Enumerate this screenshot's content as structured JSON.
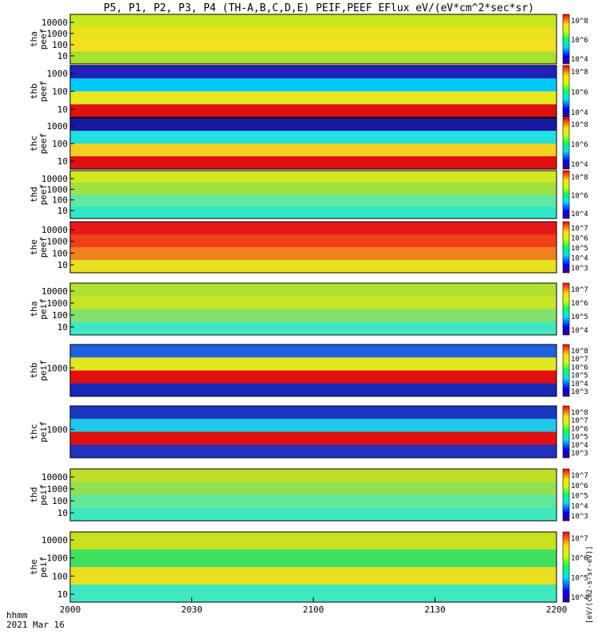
{
  "title": "P5, P1, P2, P3, P4 (TH-A,B,C,D,E) PEIF,PEEF EFlux eV/(eV*cm^2*sec*sr)",
  "x_axis": {
    "ticks": [
      "2000",
      "2030",
      "2100",
      "2130",
      "2200"
    ],
    "unit_label": "hhmm",
    "date_label": "2021 Mar 16"
  },
  "colorbar_label": "[eV/(cm2-s-sr-eV)]",
  "chart_data": {
    "type": "heatmap",
    "panels": [
      {
        "id": "tha-peef",
        "label_top": "tha",
        "label_bottom": "peef",
        "y_ticks": [
          "10000",
          "1000",
          "100",
          "10"
        ],
        "cbar_ticks": [
          "10^8",
          "10^6",
          "10^4"
        ],
        "colors": [
          "#c8e81e",
          "#e8e41c",
          "#f4e020",
          "#a8e02c"
        ]
      },
      {
        "id": "thb-peef",
        "label_top": "thb",
        "label_bottom": "peef",
        "y_ticks": [
          "1000",
          "100",
          "10"
        ],
        "cbar_ticks": [
          "10^8",
          "10^6",
          "10^4"
        ],
        "colors": [
          "#2020b8",
          "#00c8ff",
          "#e8e820",
          "#e01010"
        ]
      },
      {
        "id": "thc-peef",
        "label_top": "thc",
        "label_bottom": "peef",
        "y_ticks": [
          "1000",
          "100",
          "10"
        ],
        "cbar_ticks": [
          "10^8",
          "10^6",
          "10^4"
        ],
        "colors": [
          "#1818a0",
          "#20e0e0",
          "#f0d020",
          "#e01010"
        ]
      },
      {
        "id": "thd-peef",
        "label_top": "thd",
        "label_bottom": "peef",
        "y_ticks": [
          "10000",
          "1000",
          "100",
          "10"
        ],
        "cbar_ticks": [
          "10^8",
          "10^6",
          "10^4"
        ],
        "colors": [
          "#d0e820",
          "#a0e040",
          "#60e8a0",
          "#30e8c8"
        ]
      },
      {
        "id": "the-peef",
        "label_top": "the",
        "label_bottom": "peef",
        "y_ticks": [
          "10000",
          "1000",
          "100",
          "10"
        ],
        "cbar_ticks": [
          "10^7",
          "10^6",
          "10^5",
          "10^4",
          "10^3"
        ],
        "colors": [
          "#e81818",
          "#f04018",
          "#f08020",
          "#e8e020"
        ]
      },
      {
        "id": "tha-peif",
        "label_top": "tha",
        "label_bottom": "peif",
        "y_ticks": [
          "10000",
          "1000",
          "100",
          "10"
        ],
        "cbar_ticks": [
          "10^7",
          "10^6",
          "10^5",
          "10^4"
        ],
        "colors": [
          "#b0e030",
          "#c8e428",
          "#80e070",
          "#40e8c0"
        ]
      },
      {
        "id": "thb-peif",
        "label_top": "thb",
        "label_bottom": "peif",
        "y_ticks": [
          "1000"
        ],
        "cbar_ticks": [
          "10^8",
          "10^7",
          "10^6",
          "10^5",
          "10^4",
          "10^3"
        ],
        "colors": [
          "#2060e0",
          "#e0e820",
          "#e01010",
          "#1828b8"
        ]
      },
      {
        "id": "thc-peif",
        "label_top": "thc",
        "label_bottom": "peif",
        "y_ticks": [
          "1000"
        ],
        "cbar_ticks": [
          "10^8",
          "10^7",
          "10^6",
          "10^5",
          "10^4",
          "10^3"
        ],
        "colors": [
          "#1838c0",
          "#20c8e8",
          "#e01010",
          "#2030c0"
        ]
      },
      {
        "id": "thd-peif",
        "label_top": "thd",
        "label_bottom": "peif",
        "y_ticks": [
          "10000",
          "1000",
          "100",
          "10"
        ],
        "cbar_ticks": [
          "10^7",
          "10^6",
          "10^5",
          "10^4",
          "10^3"
        ],
        "colors": [
          "#c0e028",
          "#90e050",
          "#60e898",
          "#40e8c0"
        ]
      },
      {
        "id": "the-peif",
        "label_top": "the",
        "label_bottom": "peif",
        "y_ticks": [
          "10000",
          "1000",
          "100",
          "10"
        ],
        "cbar_ticks": [
          "10^7",
          "10^6",
          "10^5",
          "10^4"
        ],
        "colors": [
          "#c8e020",
          "#40e060",
          "#e8e020",
          "#40e8c0"
        ]
      }
    ]
  }
}
